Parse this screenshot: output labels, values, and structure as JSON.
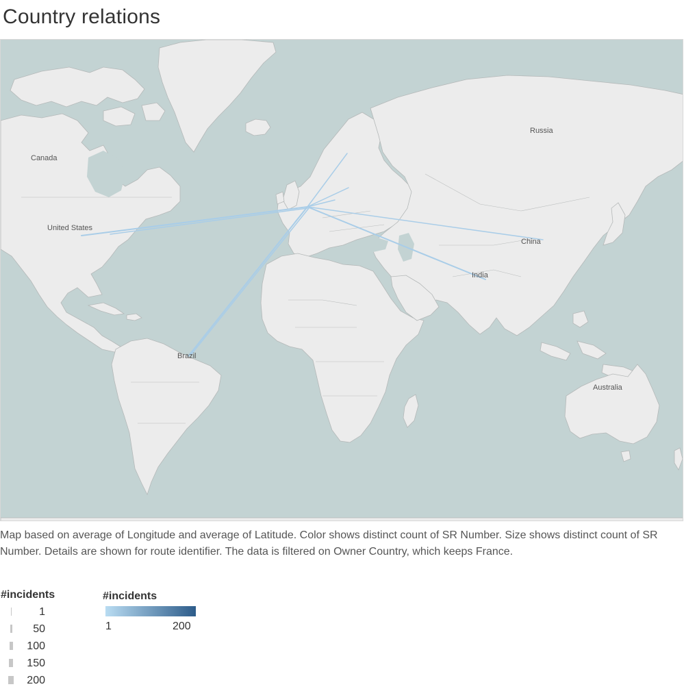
{
  "title": "Country relations",
  "map": {
    "labels": {
      "canada": "Canada",
      "united_states": "United States",
      "russia": "Russia",
      "china": "China",
      "india": "India",
      "brazil": "Brazil",
      "australia": "Australia"
    },
    "colors": {
      "water": "#c3d3d3",
      "land": "#ececec",
      "route": "#a9cde8"
    }
  },
  "caption": "Map based on average of Longitude and average of Latitude.  Color shows distinct count of SR Number.  Size shows distinct count of SR Number.  Details are shown for route identifier. The data is filtered on Owner Country, which keeps France.",
  "size_legend": {
    "title": "#incidents",
    "items": [
      {
        "label": "1",
        "value": 1
      },
      {
        "label": "50",
        "value": 50
      },
      {
        "label": "100",
        "value": 100
      },
      {
        "label": "150",
        "value": 150
      },
      {
        "label": "200",
        "value": 200
      }
    ]
  },
  "color_legend": {
    "title": "#incidents",
    "min_label": "1",
    "max_label": "200",
    "colors": {
      "min": "#b9dcf2",
      "max": "#2d5c8a"
    }
  }
}
